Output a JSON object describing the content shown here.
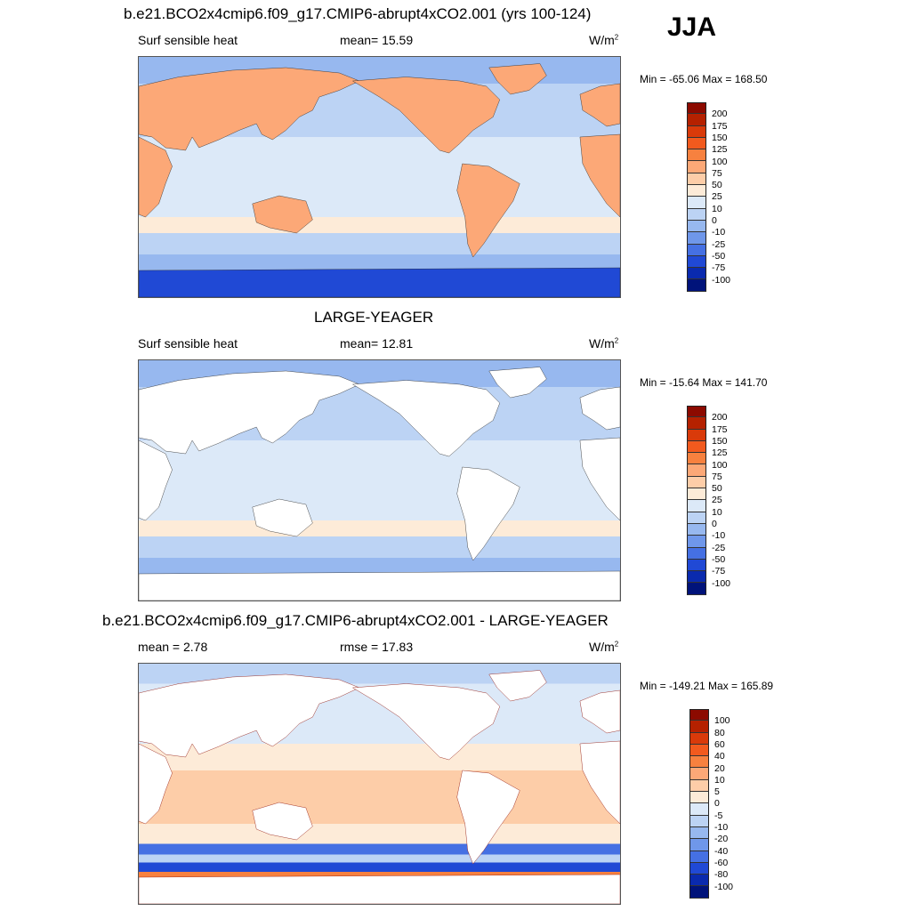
{
  "season": "JJA",
  "panels": [
    {
      "title": "b.e21.BCO2x4cmip6.f09_g17.CMIP6-abrupt4xCO2.001 (yrs 100-124)",
      "left_label": "Surf sensible heat",
      "center_label": "mean=  15.59",
      "units": "W/m",
      "units_sup": "2",
      "minmax": "Min = -65.06 Max = 168.50",
      "land_filled": true
    },
    {
      "title": "LARGE-YEAGER",
      "left_label": "Surf sensible heat",
      "center_label": "mean=  12.81",
      "units": "W/m",
      "units_sup": "2",
      "minmax": "Min = -15.64 Max = 141.70",
      "land_filled": false
    },
    {
      "title": "b.e21.BCO2x4cmip6.f09_g17.CMIP6-abrupt4xCO2.001 - LARGE-YEAGER",
      "left_label": "mean =   2.78",
      "center_label": "rmse =  17.83",
      "units": "W/m",
      "units_sup": "2",
      "minmax": "Min = -149.21 Max = 165.89",
      "land_filled": false
    }
  ],
  "colorbar_main": {
    "labels": [
      "200",
      "175",
      "150",
      "125",
      "100",
      "75",
      "50",
      "25",
      "10",
      "0",
      "-10",
      "-25",
      "-50",
      "-75",
      "-100"
    ],
    "colors": [
      "#8c0a00",
      "#b52100",
      "#d93a0a",
      "#f25a1e",
      "#f7813f",
      "#fca877",
      "#fdcda8",
      "#fdebd8",
      "#dce9f8",
      "#bcd3f4",
      "#97b8ef",
      "#6f97ea",
      "#4570e3",
      "#2049d5",
      "#0a2aae",
      "#00137a"
    ]
  },
  "colorbar_diff": {
    "labels": [
      "100",
      "80",
      "60",
      "40",
      "20",
      "10",
      "5",
      "0",
      "-5",
      "-10",
      "-20",
      "-40",
      "-60",
      "-80",
      "-100"
    ],
    "colors": [
      "#8c0a00",
      "#b52100",
      "#d93a0a",
      "#f25a1e",
      "#f7813f",
      "#fca877",
      "#fdcda8",
      "#fdebd8",
      "#dce9f8",
      "#bcd3f4",
      "#97b8ef",
      "#6f97ea",
      "#4570e3",
      "#2049d5",
      "#0a2aae",
      "#00137a"
    ]
  }
}
